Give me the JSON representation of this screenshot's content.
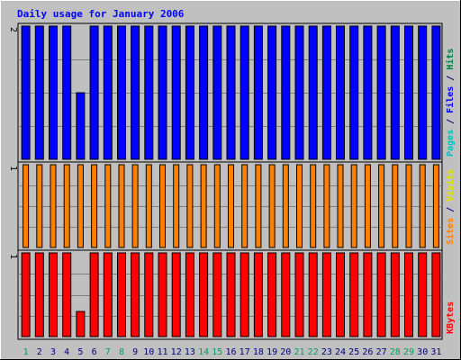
{
  "chart_data": {
    "type": "bar",
    "title": "Daily usage for January 2006",
    "categories": [
      "1",
      "2",
      "3",
      "4",
      "5",
      "6",
      "7",
      "8",
      "9",
      "10",
      "11",
      "12",
      "13",
      "14",
      "15",
      "16",
      "17",
      "18",
      "19",
      "20",
      "21",
      "22",
      "23",
      "24",
      "25",
      "26",
      "27",
      "28",
      "29",
      "30",
      "31"
    ],
    "weekend_days": [
      "1",
      "7",
      "8",
      "14",
      "15",
      "21",
      "22",
      "28",
      "29"
    ],
    "panels": [
      {
        "id": "pages-files-hits",
        "max_label": "2",
        "ymax": 2,
        "side_labels": [
          {
            "text": "Pages",
            "color": "#00c0c0"
          },
          {
            "text": " / ",
            "color": "#000080"
          },
          {
            "text": "Files",
            "color": "#0000ff"
          },
          {
            "text": " / ",
            "color": "#000080"
          },
          {
            "text": "Hits",
            "color": "#008040"
          }
        ],
        "series": [
          {
            "name": "Files",
            "color": "#0000ff",
            "values": [
              2,
              2,
              2,
              2,
              1,
              2,
              2,
              2,
              2,
              2,
              2,
              2,
              2,
              2,
              2,
              2,
              2,
              2,
              2,
              2,
              2,
              2,
              2,
              2,
              2,
              2,
              2,
              2,
              2,
              2,
              2
            ]
          }
        ]
      },
      {
        "id": "sites-visits",
        "max_label": "1",
        "ymax": 1,
        "side_labels": [
          {
            "text": "Sites",
            "color": "#ff8000"
          },
          {
            "text": " / ",
            "color": "#000080"
          },
          {
            "text": "Visits",
            "color": "#e0e000"
          }
        ],
        "series": [
          {
            "name": "Sites",
            "color": "#ff8000",
            "values": [
              1,
              1,
              1,
              1,
              1,
              1,
              1,
              1,
              1,
              1,
              1,
              1,
              1,
              1,
              1,
              1,
              1,
              1,
              1,
              1,
              1,
              1,
              1,
              1,
              1,
              1,
              1,
              1,
              1,
              1,
              1
            ]
          }
        ]
      },
      {
        "id": "kbytes",
        "max_label": "1",
        "ymax": 1,
        "side_labels": [
          {
            "text": "KBytes",
            "color": "#ff0000"
          }
        ],
        "series": [
          {
            "name": "KBytes",
            "color": "#ff0000",
            "values": [
              1,
              1,
              1,
              1,
              0.3,
              1,
              1,
              1,
              1,
              1,
              1,
              1,
              1,
              1,
              1,
              1,
              1,
              1,
              1,
              1,
              1,
              1,
              1,
              1,
              1,
              1,
              1,
              1,
              1,
              1,
              1
            ]
          }
        ]
      }
    ],
    "colors": {
      "background": "#c0c0c0",
      "title": "#0000ff",
      "weekday_label": "#000080",
      "weekend_label": "#00a060",
      "grid": "#808080",
      "plot_bg": "#c0c0c0"
    }
  }
}
